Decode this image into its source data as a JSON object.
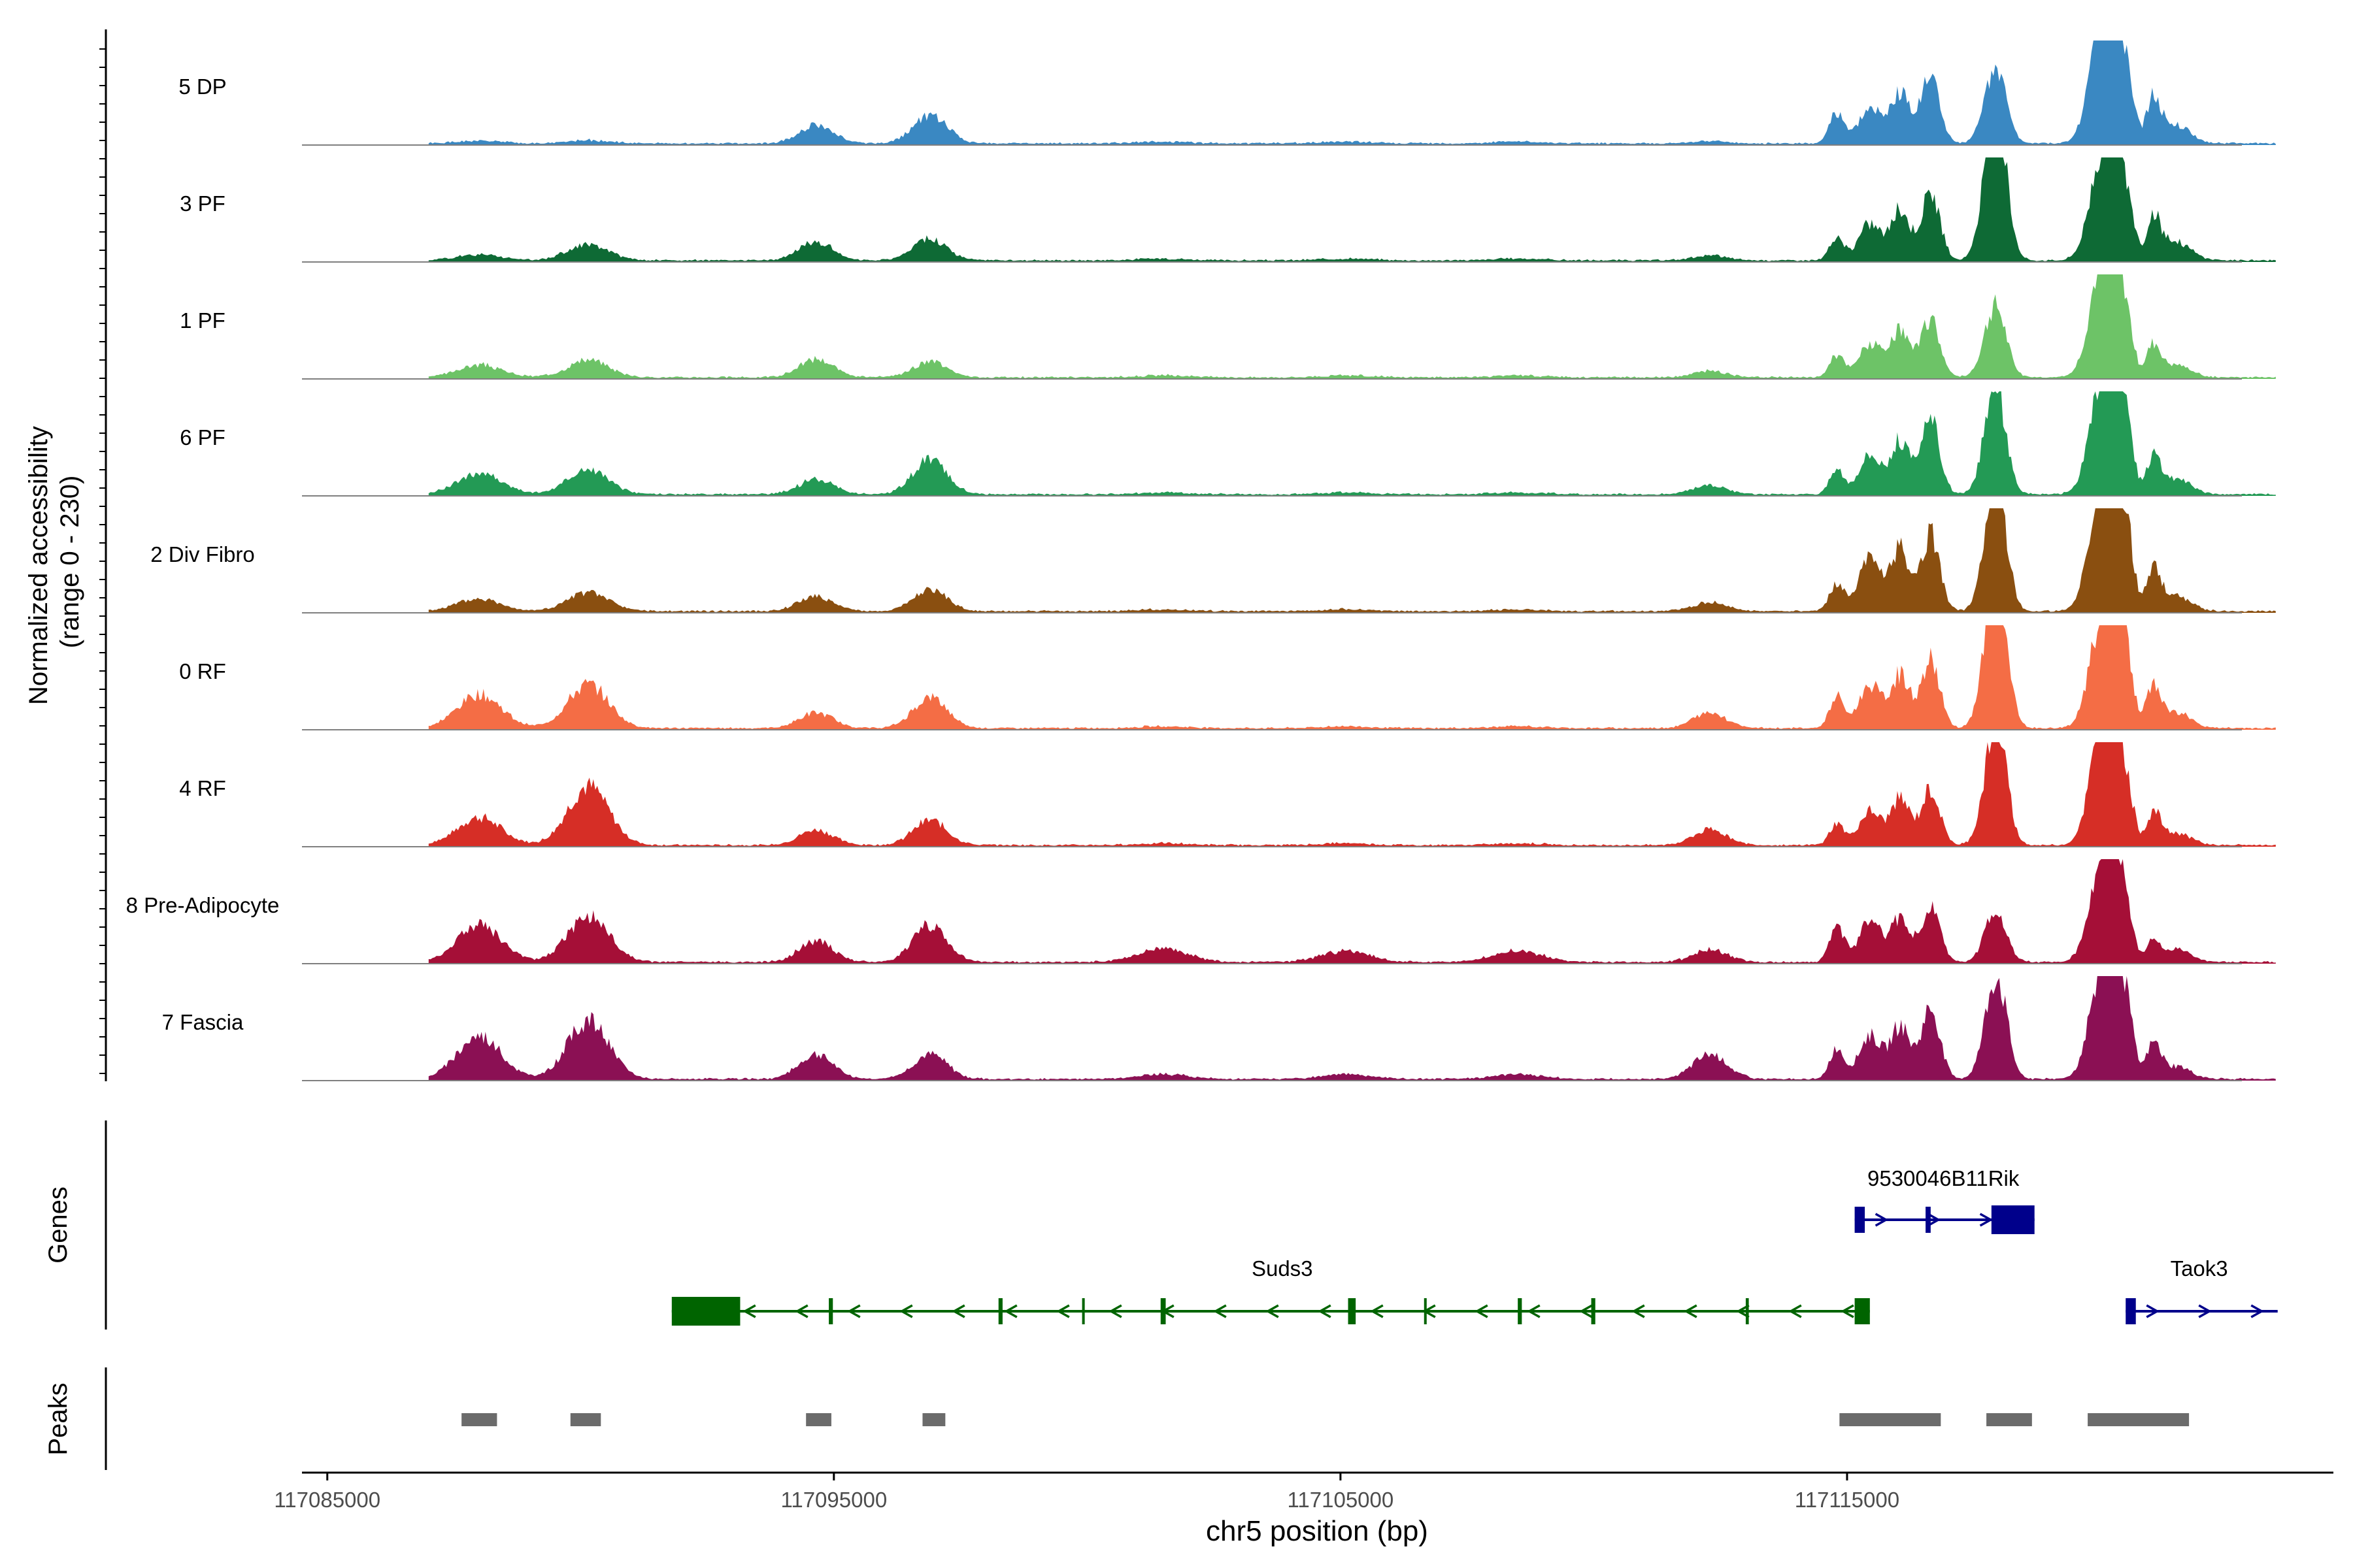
{
  "chart_data": {
    "type": "area",
    "title": "",
    "xlabel": "chr5 position (bp)",
    "ylabel_line1": "Normalized accessibility",
    "ylabel_line2": "(range 0 - 230)",
    "xlim": [
      117084500,
      117124600
    ],
    "ylim": [
      0,
      230
    ],
    "x_ticks": [
      117085000,
      117095000,
      117105000,
      117115000
    ],
    "x_tick_labels": [
      "117085000",
      "117095000",
      "117105000",
      "117115000"
    ],
    "peak_centers": [
      117088000,
      117090150,
      117094650,
      117096900,
      117101500,
      117105100,
      117108500,
      117112300,
      117114800,
      117115450,
      117116050,
      117116650,
      117117850,
      117118000,
      117120050,
      117120300,
      117120550,
      117121050,
      117121500
    ],
    "tracks": [
      {
        "name": "5 DP",
        "color": "#3a88c2",
        "peak_heights": [
          4,
          5,
          30,
          45,
          3,
          3,
          3,
          4,
          50,
          60,
          80,
          115,
          60,
          75,
          195,
          140,
          80,
          70,
          30
        ]
      },
      {
        "name": "3 PF",
        "color": "#0e6a35",
        "peak_heights": [
          10,
          25,
          30,
          35,
          3,
          3,
          3,
          8,
          35,
          60,
          80,
          110,
          130,
          145,
          175,
          130,
          70,
          65,
          30
        ]
      },
      {
        "name": "1 PF",
        "color": "#6dc367",
        "peak_heights": [
          20,
          28,
          30,
          25,
          3,
          3,
          3,
          10,
          35,
          55,
          75,
          95,
          65,
          60,
          195,
          130,
          60,
          50,
          20
        ]
      },
      {
        "name": "6 PF",
        "color": "#239a55",
        "peak_heights": [
          35,
          40,
          25,
          55,
          3,
          3,
          3,
          15,
          40,
          65,
          85,
          120,
          95,
          90,
          185,
          125,
          75,
          55,
          25
        ]
      },
      {
        "name": "2 Div Fibro",
        "color": "#8a4f10",
        "peak_heights": [
          20,
          30,
          25,
          35,
          3,
          3,
          3,
          15,
          45,
          85,
          100,
          125,
          100,
          120,
          225,
          150,
          90,
          65,
          25
        ]
      },
      {
        "name": "0 RF",
        "color": "#f46d45",
        "peak_heights": [
          55,
          70,
          25,
          50,
          3,
          3,
          3,
          25,
          50,
          70,
          85,
          110,
          120,
          150,
          180,
          160,
          80,
          65,
          25
        ]
      },
      {
        "name": "4 RF",
        "color": "#d62e26",
        "peak_heights": [
          45,
          95,
          25,
          40,
          3,
          3,
          3,
          25,
          35,
          55,
          75,
          90,
          100,
          115,
          190,
          120,
          65,
          50,
          20
        ]
      },
      {
        "name": "8 Pre-Adipocyte",
        "color": "#a50f37",
        "peak_heights": [
          60,
          75,
          35,
          60,
          22,
          18,
          18,
          20,
          60,
          65,
          70,
          90,
          40,
          45,
          175,
          120,
          50,
          30,
          20
        ]
      },
      {
        "name": "7 Fascia",
        "color": "#8b1054",
        "peak_heights": [
          70,
          95,
          40,
          40,
          8,
          8,
          8,
          40,
          50,
          70,
          85,
          115,
          75,
          105,
          190,
          125,
          80,
          55,
          20
        ]
      }
    ],
    "genes_label": "Genes",
    "genes": [
      {
        "name": "9530046B11Rik",
        "strand": "+",
        "start": 117115150,
        "end": 117118700,
        "color": "#00008b",
        "exons": [
          [
            117115150,
            117115350
          ],
          [
            117116550,
            117116650
          ],
          [
            117117850,
            117118700
          ]
        ]
      },
      {
        "name": "Suds3",
        "strand": "-",
        "start": 117091800,
        "end": 117115450,
        "color": "#006400",
        "exons": [
          [
            117091800,
            117093150
          ],
          [
            117094900,
            117094980
          ],
          [
            117098250,
            117098330
          ],
          [
            117099900,
            117099930
          ],
          [
            117101450,
            117101550
          ],
          [
            117105150,
            117105300
          ],
          [
            117106650,
            117106670
          ],
          [
            117108500,
            117108580
          ],
          [
            117109950,
            117110030
          ],
          [
            117113000,
            117113060
          ],
          [
            117115150,
            117115450
          ]
        ]
      },
      {
        "name": "Taok3",
        "strand": "+",
        "start": 117120500,
        "end": 117123500,
        "color": "#00008b",
        "exons": [
          [
            117120500,
            117120700
          ]
        ]
      }
    ],
    "peaks_label": "Peaks",
    "peaks": [
      [
        117087650,
        117088350
      ],
      [
        117089800,
        117090400
      ],
      [
        117094450,
        117094950
      ],
      [
        117096750,
        117097200
      ],
      [
        117114850,
        117116850
      ],
      [
        117117750,
        117118650
      ],
      [
        117119750,
        117121750
      ]
    ]
  }
}
